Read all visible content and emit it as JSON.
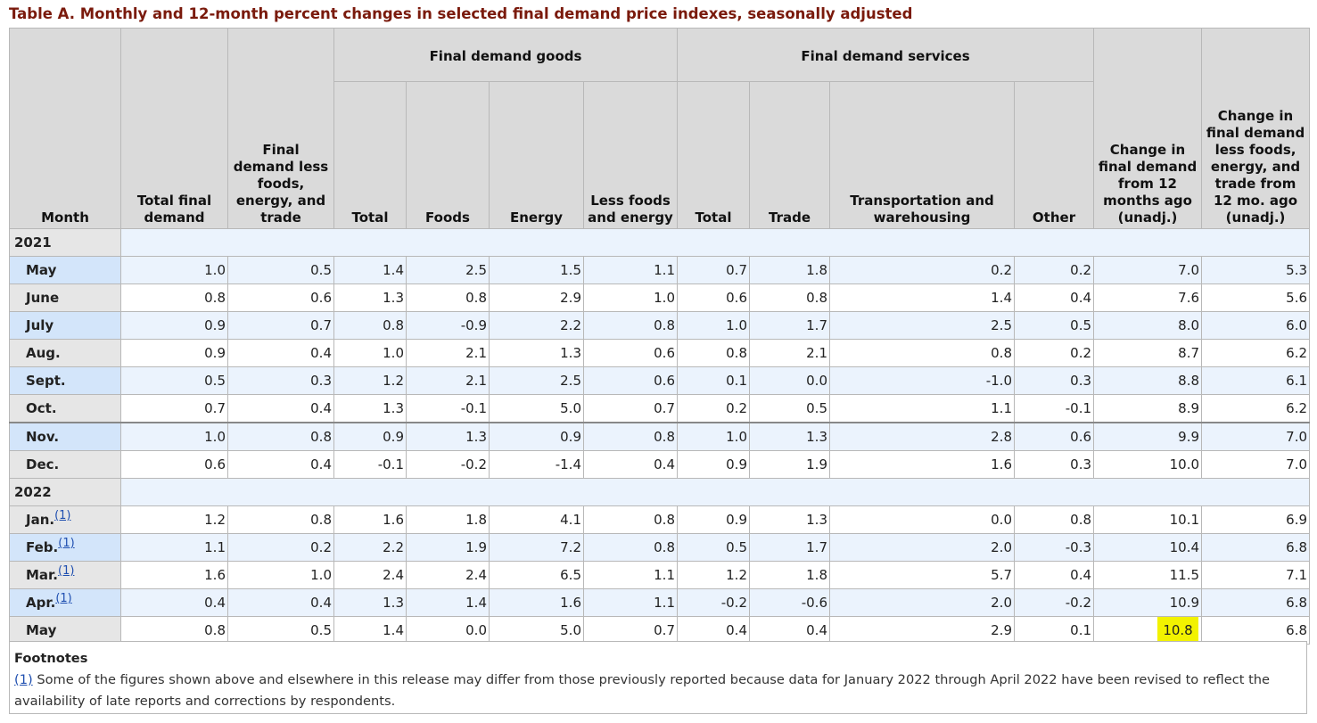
{
  "caption": "Table A. Monthly and 12-month percent changes in selected final demand price indexes, seasonally adjusted",
  "headers": {
    "month": "Month",
    "total_final_demand": "Total final demand",
    "fd_less": "Final demand less foods, energy, and trade",
    "goods_group": "Final demand goods",
    "services_group": "Final demand services",
    "goods_total": "Total",
    "goods_foods": "Foods",
    "goods_energy": "Energy",
    "goods_less": "Less foods and energy",
    "svc_total": "Total",
    "svc_trade": "Trade",
    "svc_transport": "Transportation and warehousing",
    "svc_other": "Other",
    "change12": "Change in final demand from 12 months ago (unadj.)",
    "change12_less": "Change in final demand less foods, energy, and trade from 12 mo. ago (unadj.)"
  },
  "years": {
    "y2021": "2021",
    "y2022": "2022"
  },
  "footnote_marker": "(1)",
  "rows2021": [
    {
      "month": "May",
      "v": [
        "1.0",
        "0.5",
        "1.4",
        "2.5",
        "1.5",
        "1.1",
        "0.7",
        "1.8",
        "0.2",
        "0.2",
        "7.0",
        "5.3"
      ]
    },
    {
      "month": "June",
      "v": [
        "0.8",
        "0.6",
        "1.3",
        "0.8",
        "2.9",
        "1.0",
        "0.6",
        "0.8",
        "1.4",
        "0.4",
        "7.6",
        "5.6"
      ]
    },
    {
      "month": "July",
      "v": [
        "0.9",
        "0.7",
        "0.8",
        "-0.9",
        "2.2",
        "0.8",
        "1.0",
        "1.7",
        "2.5",
        "0.5",
        "8.0",
        "6.0"
      ]
    },
    {
      "month": "Aug.",
      "v": [
        "0.9",
        "0.4",
        "1.0",
        "2.1",
        "1.3",
        "0.6",
        "0.8",
        "2.1",
        "0.8",
        "0.2",
        "8.7",
        "6.2"
      ]
    },
    {
      "month": "Sept.",
      "v": [
        "0.5",
        "0.3",
        "1.2",
        "2.1",
        "2.5",
        "0.6",
        "0.1",
        "0.0",
        "-1.0",
        "0.3",
        "8.8",
        "6.1"
      ]
    },
    {
      "month": "Oct.",
      "v": [
        "0.7",
        "0.4",
        "1.3",
        "-0.1",
        "5.0",
        "0.7",
        "0.2",
        "0.5",
        "1.1",
        "-0.1",
        "8.9",
        "6.2"
      ]
    },
    {
      "month": "Nov.",
      "v": [
        "1.0",
        "0.8",
        "0.9",
        "1.3",
        "0.9",
        "0.8",
        "1.0",
        "1.3",
        "2.8",
        "0.6",
        "9.9",
        "7.0"
      ]
    },
    {
      "month": "Dec.",
      "v": [
        "0.6",
        "0.4",
        "-0.1",
        "-0.2",
        "-1.4",
        "0.4",
        "0.9",
        "1.9",
        "1.6",
        "0.3",
        "10.0",
        "7.0"
      ]
    }
  ],
  "rows2022": [
    {
      "month": "Jan.",
      "v": [
        "1.2",
        "0.8",
        "1.6",
        "1.8",
        "4.1",
        "0.8",
        "0.9",
        "1.3",
        "0.0",
        "0.8",
        "10.1",
        "6.9"
      ]
    },
    {
      "month": "Feb.",
      "v": [
        "1.1",
        "0.2",
        "2.2",
        "1.9",
        "7.2",
        "0.8",
        "0.5",
        "1.7",
        "2.0",
        "-0.3",
        "10.4",
        "6.8"
      ]
    },
    {
      "month": "Mar.",
      "v": [
        "1.6",
        "1.0",
        "2.4",
        "2.4",
        "6.5",
        "1.1",
        "1.2",
        "1.8",
        "5.7",
        "0.4",
        "11.5",
        "7.1"
      ]
    },
    {
      "month": "Apr.",
      "v": [
        "0.4",
        "0.4",
        "1.3",
        "1.4",
        "1.6",
        "1.1",
        "-0.2",
        "-0.6",
        "2.0",
        "-0.2",
        "10.9",
        "6.8"
      ]
    },
    {
      "month": "May",
      "v": [
        "0.8",
        "0.5",
        "1.4",
        "0.0",
        "5.0",
        "0.7",
        "0.4",
        "0.4",
        "2.9",
        "0.1",
        "10.8",
        "6.8"
      ]
    }
  ],
  "highlight_color": "#f2f200",
  "footnotes": {
    "heading": "Footnotes",
    "ref": "(1)",
    "text": " Some of the figures shown above and elsewhere in this release may differ from those previously reported because data for January 2022 through April 2022 have been revised to reflect the availability of late reports and corrections by respondents."
  }
}
